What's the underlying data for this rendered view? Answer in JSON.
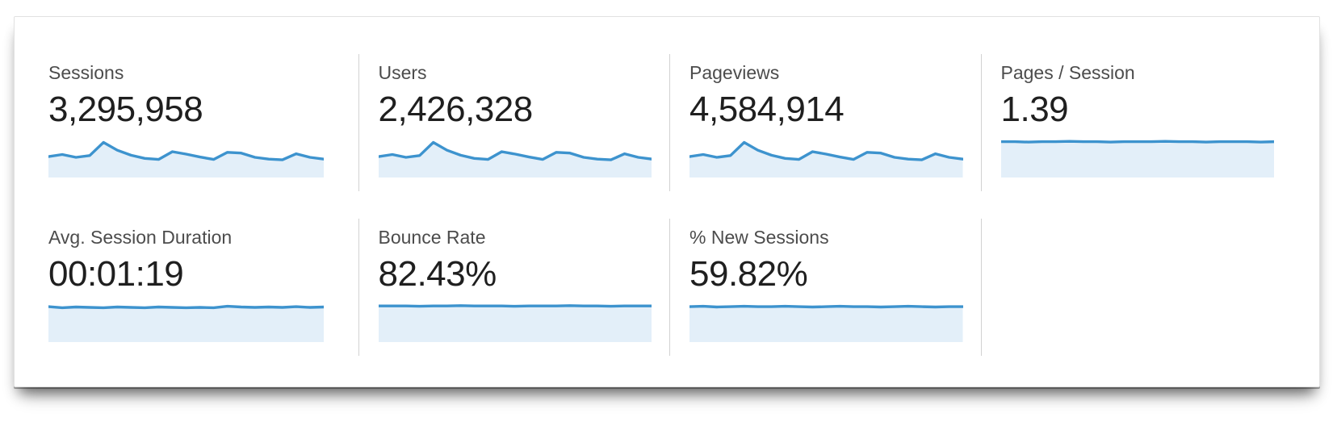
{
  "app": {
    "name": "analytics-metrics-summary"
  },
  "colors": {
    "spark_line": "#3d93ce",
    "spark_fill": "#e3eff9",
    "divider": "#d2d2d2",
    "label_text": "#4c4c4c",
    "value_text": "#1f1f1f",
    "panel_border": "#e1e1e1",
    "panel_background": "#ffffff"
  },
  "cards": [
    {
      "label": "Sessions",
      "value": "3,295,958",
      "sparkline": {
        "type": "area",
        "values": [
          0.52,
          0.58,
          0.5,
          0.55,
          0.92,
          0.7,
          0.56,
          0.47,
          0.44,
          0.66,
          0.59,
          0.51,
          0.44,
          0.64,
          0.62,
          0.5,
          0.45,
          0.43,
          0.6,
          0.5,
          0.45
        ]
      }
    },
    {
      "label": "Users",
      "value": "2,426,328",
      "sparkline": {
        "type": "area",
        "values": [
          0.52,
          0.58,
          0.5,
          0.55,
          0.92,
          0.7,
          0.56,
          0.47,
          0.44,
          0.66,
          0.59,
          0.51,
          0.44,
          0.64,
          0.62,
          0.5,
          0.45,
          0.43,
          0.6,
          0.5,
          0.45
        ]
      }
    },
    {
      "label": "Pageviews",
      "value": "4,584,914",
      "sparkline": {
        "type": "area",
        "values": [
          0.52,
          0.58,
          0.5,
          0.55,
          0.92,
          0.7,
          0.56,
          0.47,
          0.44,
          0.66,
          0.59,
          0.51,
          0.44,
          0.64,
          0.62,
          0.5,
          0.45,
          0.43,
          0.6,
          0.5,
          0.45
        ]
      }
    },
    {
      "label": "Pages / Session",
      "value": "1.39",
      "sparkline": {
        "type": "area",
        "values": [
          0.94,
          0.94,
          0.93,
          0.94,
          0.94,
          0.95,
          0.94,
          0.94,
          0.93,
          0.94,
          0.94,
          0.94,
          0.95,
          0.94,
          0.94,
          0.93,
          0.94,
          0.94,
          0.94,
          0.93,
          0.94
        ]
      }
    },
    {
      "label": "Avg. Session Duration",
      "value": "00:01:19",
      "sparkline": {
        "type": "area",
        "values": [
          0.93,
          0.9,
          0.92,
          0.91,
          0.9,
          0.92,
          0.91,
          0.9,
          0.92,
          0.91,
          0.9,
          0.91,
          0.9,
          0.94,
          0.92,
          0.91,
          0.92,
          0.91,
          0.93,
          0.91,
          0.92
        ]
      }
    },
    {
      "label": "Bounce Rate",
      "value": "82.43%",
      "sparkline": {
        "type": "area",
        "values": [
          0.95,
          0.95,
          0.95,
          0.94,
          0.95,
          0.95,
          0.96,
          0.95,
          0.95,
          0.95,
          0.94,
          0.95,
          0.95,
          0.95,
          0.96,
          0.95,
          0.95,
          0.94,
          0.95,
          0.95,
          0.95
        ]
      }
    },
    {
      "label": "% New Sessions",
      "value": "59.82%",
      "sparkline": {
        "type": "area",
        "values": [
          0.93,
          0.94,
          0.92,
          0.93,
          0.94,
          0.93,
          0.93,
          0.94,
          0.93,
          0.92,
          0.93,
          0.94,
          0.93,
          0.93,
          0.92,
          0.93,
          0.94,
          0.93,
          0.92,
          0.93,
          0.93
        ]
      }
    }
  ]
}
